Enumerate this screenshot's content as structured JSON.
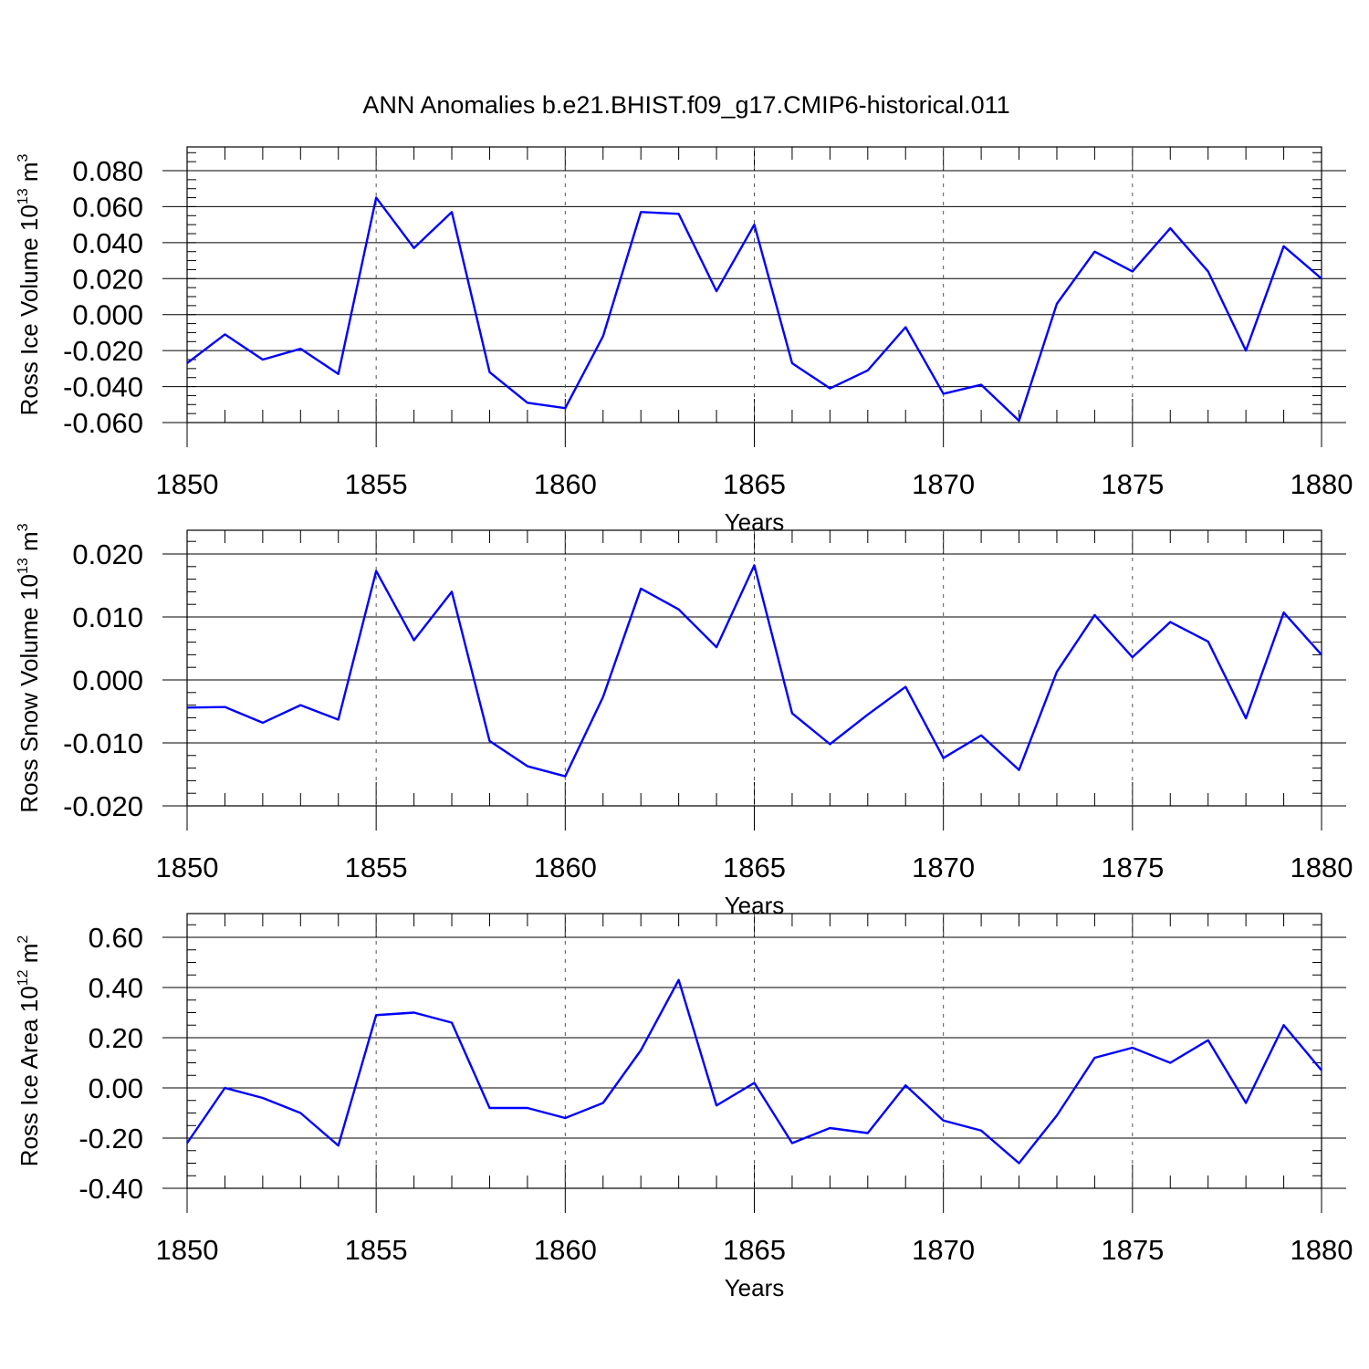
{
  "title": "ANN Anomalies b.e21.BHIST.f09_g17.CMIP6-historical.011",
  "line_color": "#0000ff",
  "chart_data": [
    {
      "type": "line",
      "title": "",
      "xlabel": "Years",
      "ylabel": {
        "base": "Ross Ice Volume 10",
        "exp": "13",
        "unit": " m",
        "unit_exp": "3"
      },
      "xlim": [
        1850,
        1880
      ],
      "ylim": [
        -0.06,
        0.08
      ],
      "xticks": [
        1850,
        1855,
        1860,
        1865,
        1870,
        1875,
        1880
      ],
      "xtick_labels": [
        "1850",
        "1855",
        "1860",
        "1865",
        "1870",
        "1875",
        "1880"
      ],
      "yticks": [
        -0.06,
        -0.04,
        -0.02,
        0.0,
        0.02,
        0.04,
        0.06,
        0.08
      ],
      "ytick_labels": [
        "-0.060",
        "-0.040",
        "-0.020",
        "0.000",
        "0.020",
        "0.040",
        "0.060",
        "0.080"
      ],
      "yminor_step": 0.005,
      "grid_x": true,
      "x": [
        1850,
        1851,
        1852,
        1853,
        1854,
        1855,
        1856,
        1857,
        1858,
        1859,
        1860,
        1861,
        1862,
        1863,
        1864,
        1865,
        1866,
        1867,
        1868,
        1869,
        1870,
        1871,
        1872,
        1873,
        1874,
        1875,
        1876,
        1877,
        1878,
        1879,
        1880
      ],
      "series": [
        {
          "values": [
            -0.027,
            -0.011,
            -0.025,
            -0.019,
            -0.033,
            0.065,
            0.037,
            0.057,
            -0.032,
            -0.049,
            -0.052,
            -0.012,
            0.057,
            0.056,
            0.013,
            0.05,
            -0.027,
            -0.041,
            -0.031,
            -0.007,
            -0.044,
            -0.039,
            -0.059,
            0.006,
            0.035,
            0.024,
            0.048,
            0.024,
            -0.02,
            0.038,
            0.02
          ]
        }
      ]
    },
    {
      "type": "line",
      "title": "",
      "xlabel": "Years",
      "ylabel": {
        "base": "Ross Snow Volume 10",
        "exp": "13",
        "unit": " m",
        "unit_exp": "3"
      },
      "xlim": [
        1850,
        1880
      ],
      "ylim": [
        -0.02,
        0.02
      ],
      "xticks": [
        1850,
        1855,
        1860,
        1865,
        1870,
        1875,
        1880
      ],
      "xtick_labels": [
        "1850",
        "1855",
        "1860",
        "1865",
        "1870",
        "1875",
        "1880"
      ],
      "yticks": [
        -0.02,
        -0.01,
        0.0,
        0.01,
        0.02
      ],
      "ytick_labels": [
        "-0.020",
        "-0.010",
        "0.000",
        "0.010",
        "0.020"
      ],
      "yminor_step": 0.002,
      "grid_x": true,
      "x": [
        1850,
        1851,
        1852,
        1853,
        1854,
        1855,
        1856,
        1857,
        1858,
        1859,
        1860,
        1861,
        1862,
        1863,
        1864,
        1865,
        1866,
        1867,
        1868,
        1869,
        1870,
        1871,
        1872,
        1873,
        1874,
        1875,
        1876,
        1877,
        1878,
        1879,
        1880
      ],
      "series": [
        {
          "values": [
            -0.0044,
            -0.0043,
            -0.0068,
            -0.004,
            -0.0063,
            0.0173,
            0.0063,
            0.014,
            -0.0097,
            -0.0137,
            -0.0153,
            -0.0027,
            0.0145,
            0.0112,
            0.0052,
            0.0182,
            -0.0053,
            -0.0102,
            -0.0055,
            -0.0011,
            -0.0124,
            -0.0088,
            -0.0143,
            0.0013,
            0.0103,
            0.0036,
            0.0092,
            0.0061,
            -0.0061,
            0.0107,
            0.004
          ]
        }
      ]
    },
    {
      "type": "line",
      "title": "",
      "xlabel": "Years",
      "ylabel": {
        "base": "Ross Ice Area 10",
        "exp": "12",
        "unit": " m",
        "unit_exp": "2"
      },
      "xlim": [
        1850,
        1880
      ],
      "ylim": [
        -0.4,
        0.6
      ],
      "xticks": [
        1850,
        1855,
        1860,
        1865,
        1870,
        1875,
        1880
      ],
      "xtick_labels": [
        "1850",
        "1855",
        "1860",
        "1865",
        "1870",
        "1875",
        "1880"
      ],
      "yticks": [
        -0.4,
        -0.2,
        0.0,
        0.2,
        0.4,
        0.6
      ],
      "ytick_labels": [
        "-0.40",
        "-0.20",
        "0.00",
        "0.20",
        "0.40",
        "0.60"
      ],
      "yminor_step": 0.05,
      "grid_x": true,
      "x": [
        1850,
        1851,
        1852,
        1853,
        1854,
        1855,
        1856,
        1857,
        1858,
        1859,
        1860,
        1861,
        1862,
        1863,
        1864,
        1865,
        1866,
        1867,
        1868,
        1869,
        1870,
        1871,
        1872,
        1873,
        1874,
        1875,
        1876,
        1877,
        1878,
        1879,
        1880
      ],
      "series": [
        {
          "values": [
            -0.22,
            0.0,
            -0.04,
            -0.1,
            -0.23,
            0.29,
            0.3,
            0.26,
            -0.08,
            -0.08,
            -0.12,
            -0.06,
            0.15,
            0.43,
            -0.07,
            0.02,
            -0.22,
            -0.16,
            -0.18,
            0.01,
            -0.13,
            -0.17,
            -0.3,
            -0.11,
            0.12,
            0.16,
            0.1,
            0.19,
            -0.06,
            0.25,
            0.07
          ]
        }
      ]
    }
  ]
}
